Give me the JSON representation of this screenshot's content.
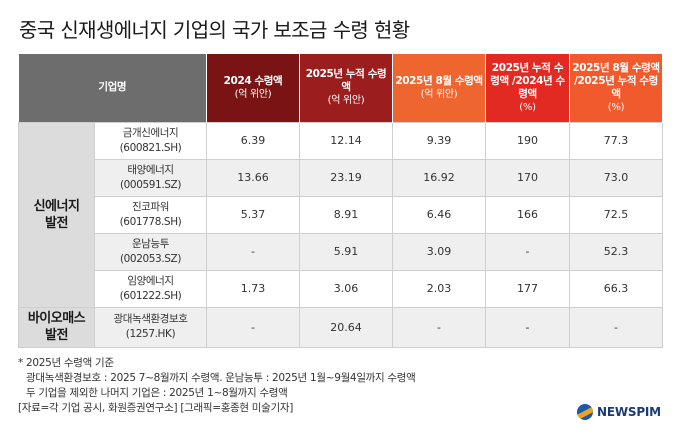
{
  "title": "중국 신재생에너지 기업의 국가 보조금 수령 현황",
  "table": {
    "headers": [
      {
        "label": "기업명",
        "sub": "",
        "color": "#6d6d6d"
      },
      {
        "label": "2024 수령액",
        "sub": "(억 위안)",
        "color": "#7a1414"
      },
      {
        "label": "2025년 누적 수령액",
        "sub": "(억 위안)",
        "color": "#9c1d1d"
      },
      {
        "label": "2025년 8월 수령액",
        "sub": "(억 위안)",
        "color": "#ee6530"
      },
      {
        "label": "2025년 누적 수령액 /2024년 수령액",
        "sub": "(%)",
        "color": "#e22a22"
      },
      {
        "label": "2025년 8월 수령액 /2025년 누적 수령액",
        "sub": "(%)",
        "color": "#f05a2c"
      }
    ],
    "groups": [
      {
        "name": "신에너지 발전",
        "rows": [
          {
            "company": "금개신에너지",
            "code": "(600821.SH)",
            "v2024": "6.39",
            "cum2025": "12.14",
            "aug2025": "9.39",
            "ratio_cum": "190",
            "ratio_aug": "77.3"
          },
          {
            "company": "태양에너지",
            "code": "(000591.SZ)",
            "v2024": "13.66",
            "cum2025": "23.19",
            "aug2025": "16.92",
            "ratio_cum": "170",
            "ratio_aug": "73.0"
          },
          {
            "company": "진코파워",
            "code": "(601778.SH)",
            "v2024": "5.37",
            "cum2025": "8.91",
            "aug2025": "6.46",
            "ratio_cum": "166",
            "ratio_aug": "72.5"
          },
          {
            "company": "운남능투",
            "code": "(002053.SZ)",
            "v2024": "-",
            "cum2025": "5.91",
            "aug2025": "3.09",
            "ratio_cum": "-",
            "ratio_aug": "52.3"
          },
          {
            "company": "임양에너지",
            "code": "(601222.SH)",
            "v2024": "1.73",
            "cum2025": "3.06",
            "aug2025": "2.03",
            "ratio_cum": "177",
            "ratio_aug": "66.3"
          }
        ]
      },
      {
        "name": "바이오매스 발전",
        "rows": [
          {
            "company": "광대녹색환경보호",
            "code": "(1257.HK)",
            "v2024": "-",
            "cum2025": "20.64",
            "aug2025": "-",
            "ratio_cum": "-",
            "ratio_aug": "-"
          }
        ]
      }
    ]
  },
  "notes": [
    "* 2025년 수령액 기준",
    "광대녹색환경보호 : 2025 7~8월까지 수령액. 운남능투 : 2025년 1월~9월4일까지 수령액",
    "두 기업을 제외한 나머지 기업은 : 2025년 1~8월까지 수령액",
    "[자료=각 기업 공시, 화원증권연구소] [그래픽=홍종현 미술기자]"
  ],
  "logo": {
    "text": "NEWSPIM",
    "icon": "newspim-logo-icon"
  }
}
